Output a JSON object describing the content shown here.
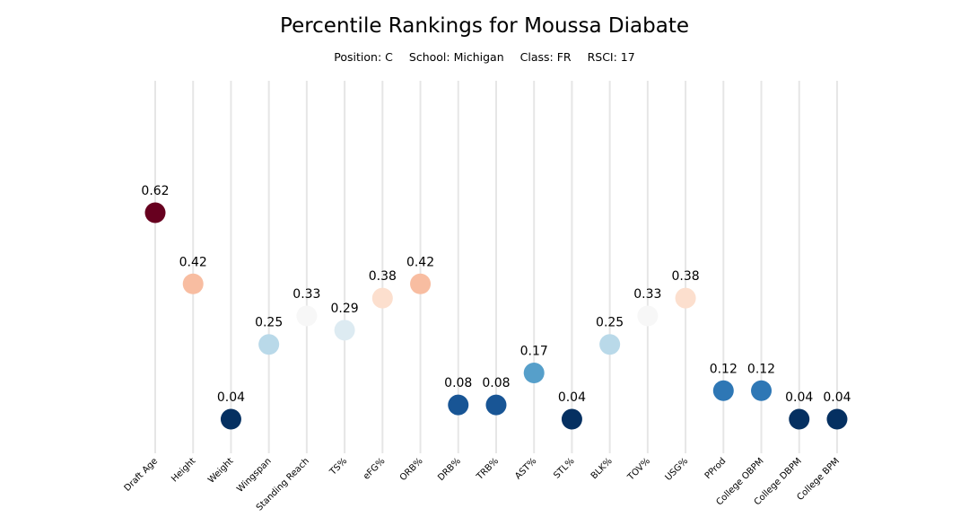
{
  "title": "Percentile Rankings for Moussa Diabate",
  "subtitle": {
    "position": "Position: C",
    "school": "School: Michigan",
    "class": "Class: FR",
    "rsci": "RSCI: 17"
  },
  "chart_data": {
    "type": "scatter",
    "title": "Percentile Rankings for Moussa Diabate",
    "categories": [
      "Draft Age",
      "Height",
      "Weight",
      "Wingspan",
      "Standing Reach",
      "TS%",
      "eFG%",
      "ORB%",
      "DRB%",
      "TRB%",
      "AST%",
      "STL%",
      "BLK%",
      "TOV%",
      "USG%",
      "PProd",
      "College OBPM",
      "College DBPM",
      "College BPM"
    ],
    "values": [
      0.62,
      0.42,
      0.04,
      0.25,
      0.33,
      0.29,
      0.38,
      0.42,
      0.08,
      0.08,
      0.17,
      0.04,
      0.25,
      0.33,
      0.38,
      0.12,
      0.12,
      0.04,
      0.04
    ],
    "labels": [
      "0.62",
      "0.42",
      "0.04",
      "0.25",
      "0.33",
      "0.29",
      "0.38",
      "0.42",
      "0.08",
      "0.08",
      "0.17",
      "0.04",
      "0.25",
      "0.33",
      "0.38",
      "0.12",
      "0.12",
      "0.04",
      "0.04"
    ],
    "ylim": [
      -0.05,
      1.0
    ],
    "grid": "vertical",
    "colormap": "RdBu_r",
    "colors": {
      "low": "#08306b",
      "high": "#67001f",
      "gridline": "#e6e6e6"
    }
  }
}
